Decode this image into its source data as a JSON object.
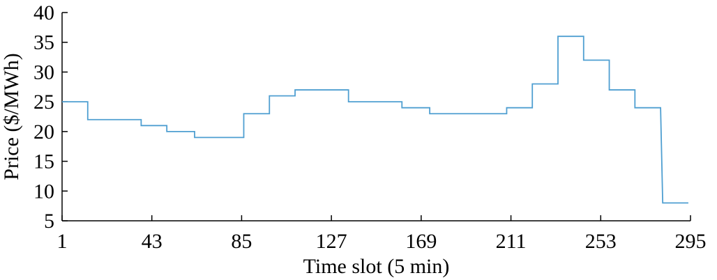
{
  "chart_data": {
    "type": "line",
    "title": "",
    "xlabel": "Time slot (5 min)",
    "ylabel": "Price ($/MWh)",
    "xlim": [
      1,
      295
    ],
    "ylim": [
      5,
      40
    ],
    "xticks": [
      1,
      43,
      85,
      127,
      169,
      211,
      253,
      295
    ],
    "yticks": [
      5,
      10,
      15,
      20,
      25,
      30,
      35,
      40
    ],
    "grid": false,
    "step": true,
    "series": [
      {
        "color": "#4f9fd1",
        "x": [
          1,
          13,
          13,
          38,
          38,
          50,
          50,
          63,
          63,
          86,
          86,
          98,
          98,
          110,
          110,
          135,
          135,
          160,
          160,
          173,
          173,
          209,
          209,
          221,
          221,
          233,
          233,
          245,
          245,
          257,
          257,
          269,
          269,
          281,
          281,
          282,
          282,
          294
        ],
        "y": [
          25,
          25,
          22,
          22,
          21,
          21,
          20,
          20,
          19,
          19,
          23,
          23,
          26,
          26,
          27,
          27,
          25,
          25,
          24,
          24,
          23,
          23,
          24,
          24,
          28,
          28,
          36,
          36,
          32,
          32,
          27,
          27,
          24,
          24,
          24,
          8,
          8,
          8
        ]
      }
    ]
  }
}
